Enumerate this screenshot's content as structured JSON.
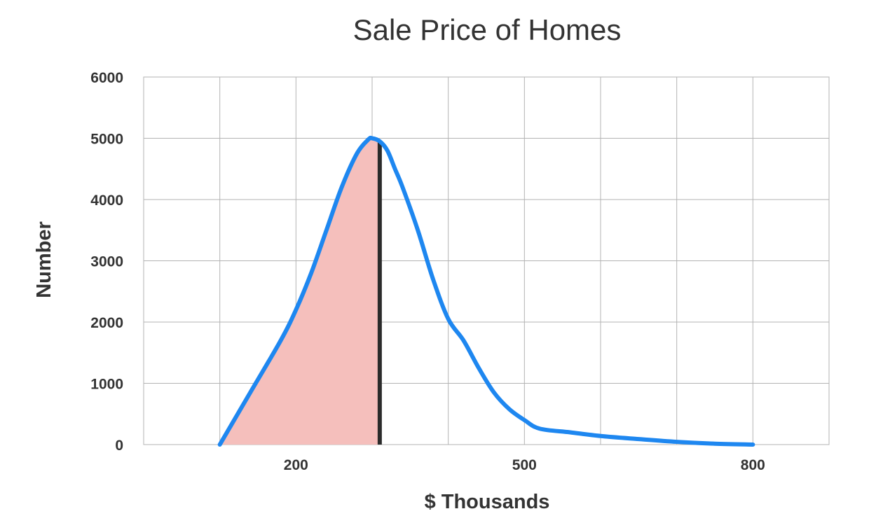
{
  "chart_data": {
    "type": "area",
    "title": "Sale Price of Homes",
    "xlabel": "$ Thousands",
    "ylabel": "Number",
    "xlim": [
      0,
      900
    ],
    "ylim": [
      0,
      6000
    ],
    "x_ticks": [
      200,
      500,
      800
    ],
    "y_ticks": [
      0,
      1000,
      2000,
      3000,
      4000,
      5000,
      6000
    ],
    "grid": true,
    "series": [
      {
        "x": [
          100,
          140,
          180,
          200,
          220,
          240,
          260,
          280,
          295,
          300,
          310,
          320,
          330,
          340,
          360,
          380,
          400,
          420,
          440,
          460,
          480,
          500,
          520,
          560,
          600,
          650,
          700,
          750,
          800
        ],
        "y": [
          0,
          850,
          1700,
          2200,
          2800,
          3500,
          4200,
          4750,
          4980,
          5000,
          4950,
          4800,
          4500,
          4200,
          3500,
          2700,
          2050,
          1700,
          1250,
          850,
          580,
          400,
          260,
          200,
          140,
          90,
          45,
          15,
          0
        ]
      }
    ],
    "shaded_region": {
      "x_start": 100,
      "x_end": 310
    },
    "marker_line": {
      "x": 310
    },
    "colors": {
      "curve": "#1e87f0",
      "shade": "#f5bfbc",
      "marker": "#2b2b2b",
      "grid": "#b3b3b3",
      "text": "#333333"
    }
  }
}
